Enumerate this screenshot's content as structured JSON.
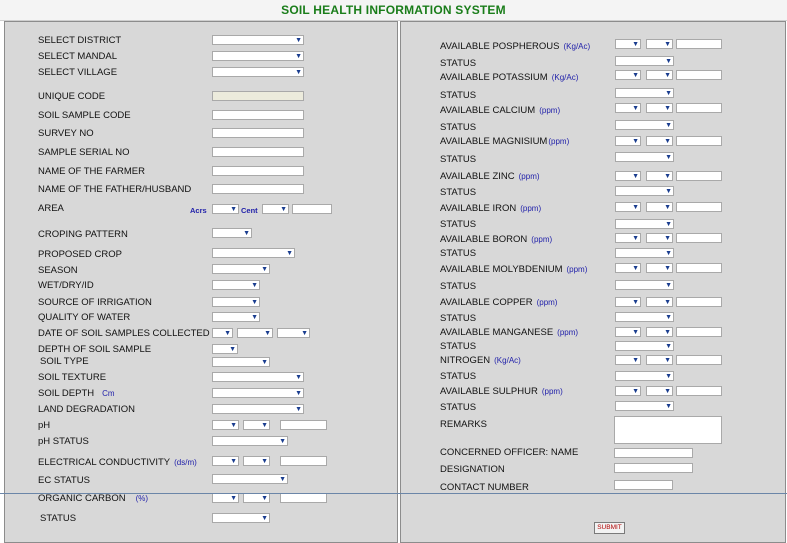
{
  "title": "SOIL HEALTH INFORMATION SYSTEM",
  "left": {
    "select_district": "SELECT DISTRICT",
    "select_mandal": "SELECT MANDAL",
    "select_village": "SELECT VILLAGE",
    "unique_code": "UNIQUE CODE",
    "soil_sample_code": "SOIL SAMPLE CODE",
    "survey_no": "SURVEY NO",
    "sample_serial_no": "SAMPLE SERIAL NO",
    "name_of_farmer": "NAME OF THE FARMER",
    "name_of_father": "NAME OF THE FATHER/HUSBAND",
    "area": "AREA",
    "area_unit_acrs": "Acrs",
    "area_unit_cent": "Cent",
    "croping_pattern": "CROPING PATTERN",
    "proposed_crop": "PROPOSED CROP",
    "season": "SEASON",
    "wet_dry": "WET/DRY/ID",
    "source_irrigation": "SOURCE OF IRRIGATION",
    "quality_water": "QUALITY OF WATER",
    "date_collected": "DATE OF SOIL SAMPLES COLLECTED",
    "depth_sample": "DEPTH OF SOIL SAMPLE",
    "soil_type": "SOIL TYPE",
    "soil_texture": "SOIL TEXTURE",
    "soil_depth": "SOIL DEPTH",
    "soil_depth_unit": "Cm",
    "land_degradation": "LAND DEGRADATION",
    "ph": "pH",
    "ph_status": "pH STATUS",
    "ec": "ELECTRICAL CONDUCTIVITY",
    "ec_unit": "(ds/m)",
    "ec_status": "EC STATUS",
    "organic_carbon": "ORGANIC CARBON",
    "organic_carbon_unit": "(%)",
    "status": "STATUS"
  },
  "right": {
    "phosphorous": "AVAILABLE POSPHEROUS",
    "phosphorous_unit": "(Kg/Ac)",
    "potassium": "AVAILABLE POTASSIUM",
    "potassium_unit": "(Kg/Ac)",
    "calcium": "AVAILABLE CALCIUM",
    "calcium_unit": "(ppm)",
    "magnisium": "AVAILABLE  MAGNISIUM",
    "magnisium_unit": "(ppm)",
    "zinc": "AVAILABLE ZINC",
    "zinc_unit": "(ppm)",
    "iron": "AVAILABLE IRON",
    "iron_unit": "(ppm)",
    "boron": "AVAILABLE BORON",
    "boron_unit": "(ppm)",
    "molybdenium": "AVAILABLE MOLYBDENIUM",
    "molybdenium_unit": "(ppm)",
    "copper": "AVAILABLE COPPER",
    "copper_unit": "(ppm)",
    "manganese": "AVAILABLE  MANGANESE",
    "manganese_unit": "(ppm)",
    "nitrogen": "NITROGEN",
    "nitrogen_unit": "(Kg/Ac)",
    "sulphur": "AVAILABLE SULPHUR",
    "sulphur_unit": "(ppm)",
    "status": "STATUS",
    "remarks": "REMARKS",
    "officer_name": "CONCERNED OFFICER: NAME",
    "designation": "DESIGNATION",
    "contact_number": "CONTACT NUMBER"
  },
  "submit_label": "SUBMIT",
  "icons": {
    "dropdown": "chevron-down-icon"
  },
  "colors": {
    "title": "#1a7d1a",
    "unit": "#2222aa",
    "panel": "#d8d8d8",
    "submit_text": "#b00000"
  }
}
